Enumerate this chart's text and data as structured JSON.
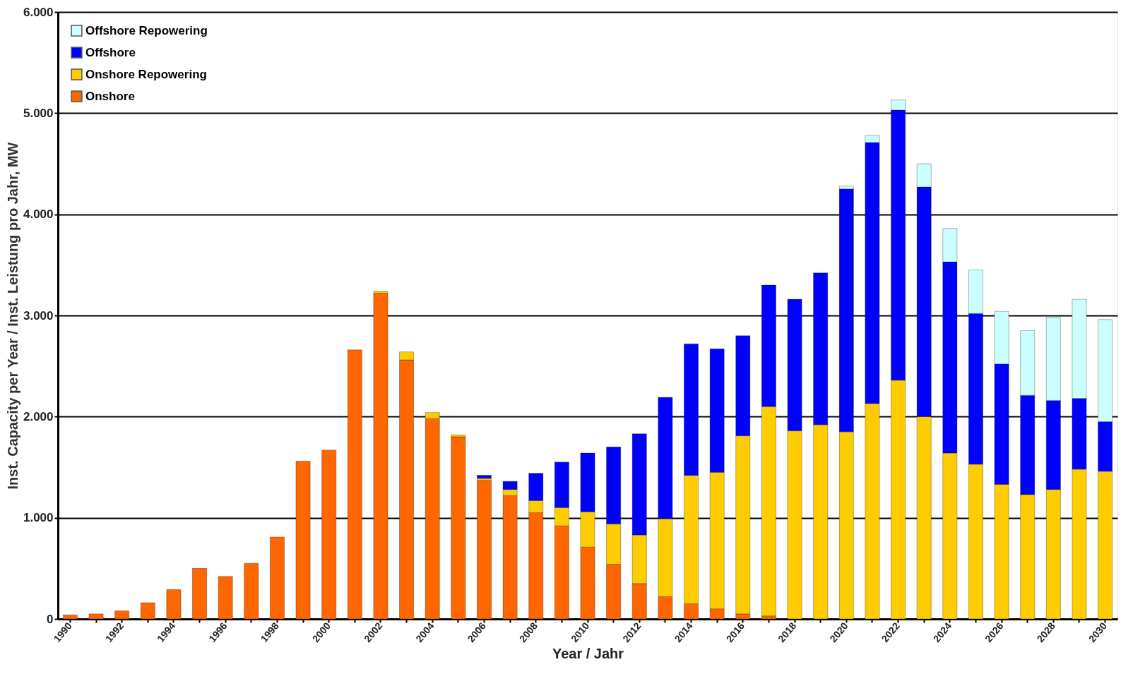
{
  "chart_data": {
    "type": "bar",
    "stacked": true,
    "xlabel": "Year / Jahr",
    "ylabel": "Inst. Capacity per Year / Inst. Leistung pro Jahr, MW",
    "categories": [
      "1990",
      null,
      "1992",
      null,
      "1994",
      null,
      "1996",
      null,
      "1998",
      null,
      "2000",
      null,
      "2002",
      null,
      "2004",
      null,
      "2006",
      null,
      "2008",
      null,
      "2010",
      null,
      "2012",
      null,
      "2014",
      null,
      "2016",
      null,
      "2018",
      null,
      "2020",
      null,
      "2022",
      null,
      "2024",
      null,
      "2026",
      null,
      "2028",
      null,
      "2030"
    ],
    "series": [
      {
        "name": "Onshore",
        "color": "#ff6600",
        "values": [
          40,
          50,
          80,
          160,
          290,
          500,
          420,
          550,
          810,
          1560,
          1670,
          2660,
          3220,
          2560,
          1980,
          1800,
          1370,
          1220,
          1050,
          920,
          710,
          540,
          350,
          220,
          150,
          100,
          50,
          30,
          null,
          null,
          null,
          null,
          null,
          null,
          null,
          null,
          null,
          null,
          null,
          null,
          null
        ]
      },
      {
        "name": "Onshore Repowering",
        "color": "#ffcc00",
        "values": [
          null,
          null,
          null,
          null,
          null,
          null,
          null,
          null,
          null,
          null,
          null,
          null,
          20,
          80,
          60,
          20,
          20,
          60,
          120,
          180,
          350,
          400,
          480,
          770,
          1270,
          1350,
          1760,
          2070,
          1860,
          1920,
          1850,
          2130,
          2360,
          2000,
          1640,
          1530,
          1330,
          1230,
          1280,
          1480,
          1460
        ]
      },
      {
        "name": "Offshore",
        "color": "#0000ff",
        "values": [
          null,
          null,
          null,
          null,
          null,
          null,
          null,
          null,
          null,
          null,
          null,
          null,
          null,
          null,
          null,
          null,
          30,
          80,
          270,
          450,
          580,
          760,
          1000,
          1200,
          1300,
          1220,
          990,
          1200,
          1300,
          1500,
          2400,
          2580,
          2670,
          2270,
          1890,
          1490,
          1190,
          980,
          880,
          700,
          490
        ]
      },
      {
        "name": "Offshore Repowering",
        "color": "#ccffff",
        "values": [
          null,
          null,
          null,
          null,
          null,
          null,
          null,
          null,
          null,
          null,
          null,
          null,
          null,
          null,
          null,
          null,
          null,
          null,
          null,
          null,
          null,
          null,
          null,
          null,
          null,
          null,
          null,
          null,
          null,
          null,
          30,
          70,
          100,
          230,
          330,
          430,
          520,
          640,
          820,
          980,
          1010
        ]
      }
    ],
    "ylim": [
      0,
      6000
    ],
    "yticks": [
      0,
      {
        "value": 1000,
        "label": "1.000"
      },
      {
        "value": 2000,
        "label": "2.000"
      },
      {
        "value": 3000,
        "label": "3.000"
      },
      {
        "value": 4000,
        "label": "4.000"
      },
      {
        "value": 5000,
        "label": "5.000"
      },
      {
        "value": 6000,
        "label": "6.000"
      }
    ],
    "grid": "y",
    "legend": "top left"
  }
}
